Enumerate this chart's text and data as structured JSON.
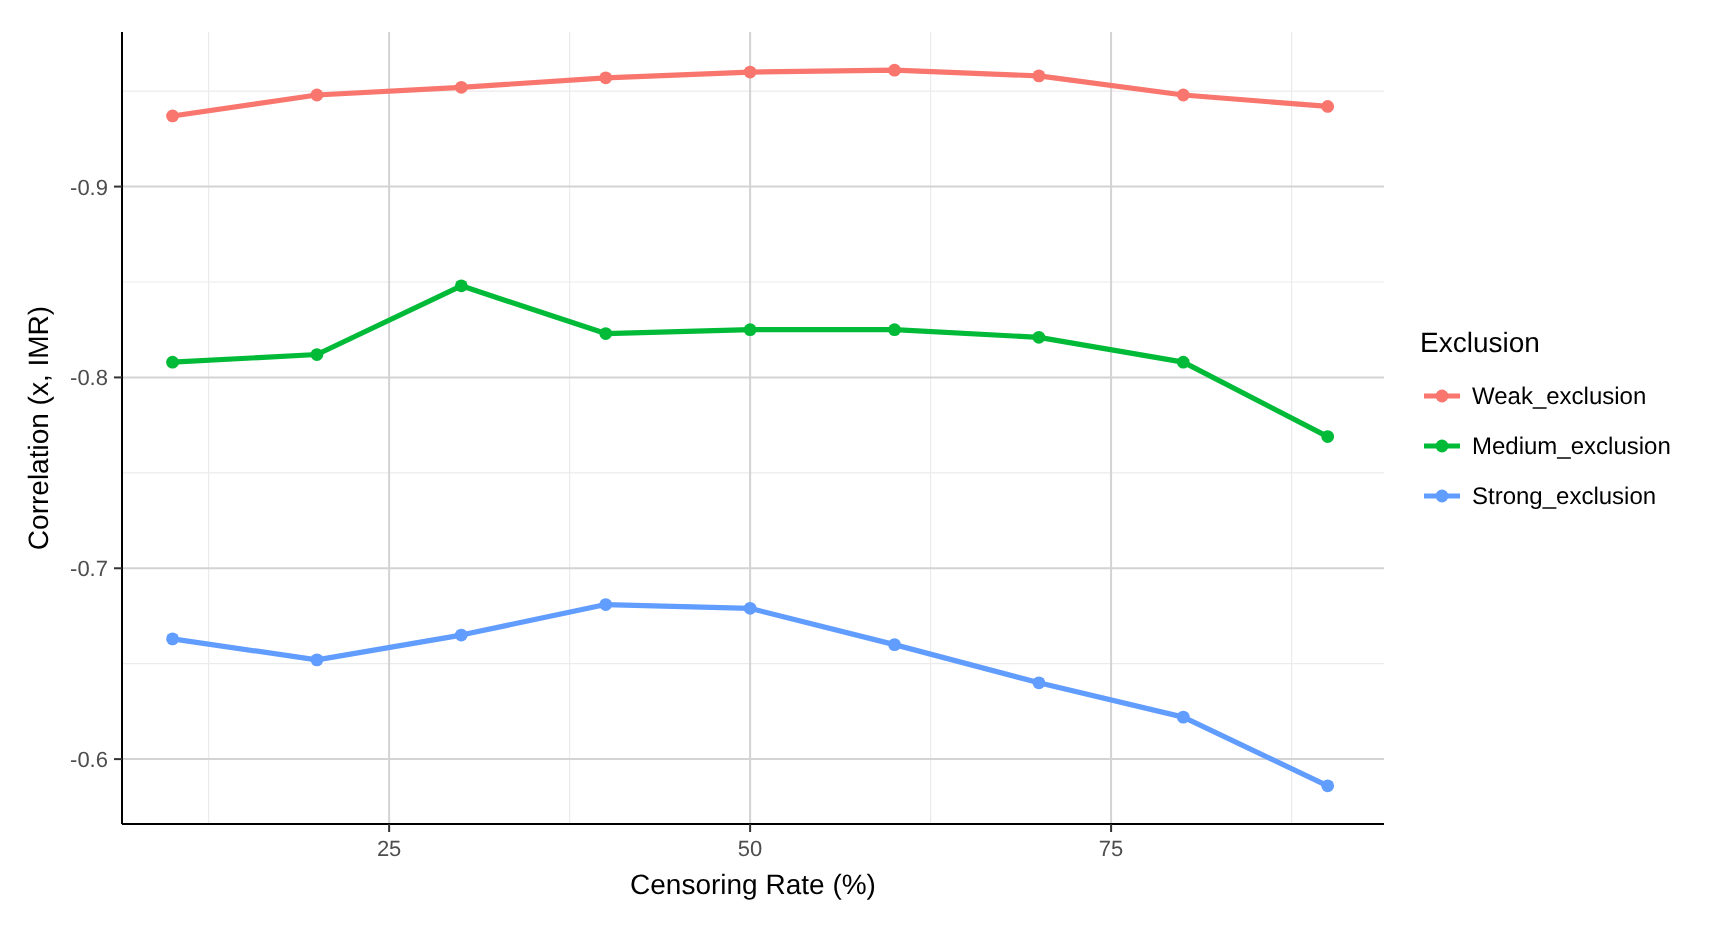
{
  "chart_data": {
    "type": "line",
    "xlabel": "Censoring Rate (%)",
    "ylabel": "Correlation (x, IMR)",
    "legend_title": "Exclusion",
    "legend": "right",
    "grid": true,
    "marker": "circle",
    "line_style": "solid",
    "x": [
      10,
      20,
      30,
      40,
      50,
      60,
      70,
      80,
      90
    ],
    "xlim": [
      6.5,
      93.9
    ],
    "xticks": [
      25,
      50,
      75
    ],
    "ylim": [
      -0.566,
      -0.981
    ],
    "yticks": [
      -0.6,
      -0.7,
      -0.8,
      -0.9
    ],
    "series": [
      {
        "name": "Weak_exclusion",
        "color": "#f8766d",
        "values": [
          -0.937,
          -0.948,
          -0.952,
          -0.957,
          -0.96,
          -0.961,
          -0.958,
          -0.948,
          -0.942
        ]
      },
      {
        "name": "Medium_exclusion",
        "color": "#00ba38",
        "values": [
          -0.808,
          -0.812,
          -0.848,
          -0.823,
          -0.825,
          -0.825,
          -0.821,
          -0.808,
          -0.769
        ]
      },
      {
        "name": "Strong_exclusion",
        "color": "#619cff",
        "values": [
          -0.663,
          -0.652,
          -0.665,
          -0.681,
          -0.679,
          -0.66,
          -0.64,
          -0.622,
          -0.586
        ]
      }
    ]
  }
}
